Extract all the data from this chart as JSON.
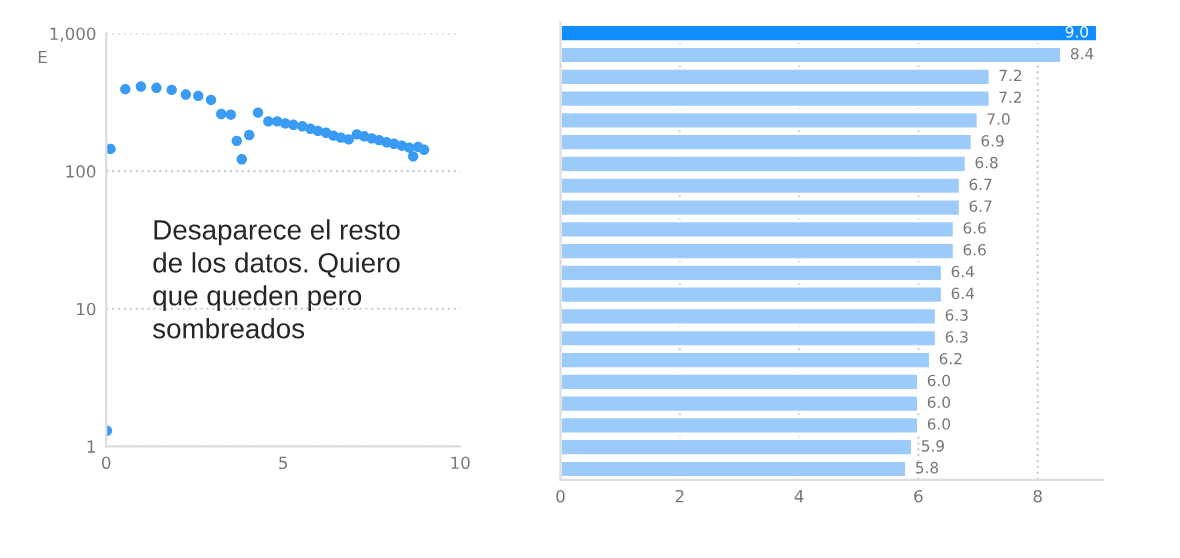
{
  "chart_data": [
    {
      "type": "scatter",
      "ylabel": "E",
      "log": "y",
      "grid": "y",
      "marker": "circle",
      "x": [
        0.02,
        0.12,
        0.54,
        0.98,
        1.42,
        1.85,
        2.25,
        2.6,
        2.96,
        3.25,
        3.52,
        3.69,
        3.83,
        4.04,
        4.29,
        4.58,
        4.83,
        5.06,
        5.29,
        5.54,
        5.77,
        5.98,
        6.21,
        6.42,
        6.63,
        6.85,
        7.08,
        7.29,
        7.5,
        7.71,
        7.92,
        8.13,
        8.35,
        8.56,
        8.67,
        8.81,
        8.98
      ],
      "series": [
        {
          "color": "#3a9bf4",
          "values": [
            1.3,
            145,
            394,
            412,
            403,
            389,
            360,
            352,
            329,
            260,
            257,
            166,
            122,
            183,
            266,
            230,
            230,
            222,
            217,
            212,
            203,
            196,
            190,
            181,
            175,
            170,
            185,
            179,
            173,
            168,
            162,
            158,
            153,
            148,
            128,
            150,
            143
          ]
        }
      ],
      "xlim": [
        0,
        10
      ],
      "xticks": [
        0,
        5,
        10
      ],
      "ylim": [
        1,
        1000
      ],
      "yticks": [
        1,
        10,
        100,
        {
          "value": 1000,
          "label": "1,000"
        }
      ],
      "annotations": [
        "Desaparece el resto de los datos. Quiero que queden pero sombreados"
      ]
    },
    {
      "type": "bar",
      "orientation": "horizontal",
      "grid": "x",
      "categories": [
        null,
        null,
        null,
        null,
        null,
        null,
        null,
        null,
        null,
        null,
        null,
        null,
        null,
        null,
        null,
        null,
        null,
        null,
        null,
        null,
        null
      ],
      "values": [
        9.0,
        8.4,
        7.2,
        7.2,
        7.0,
        6.9,
        6.8,
        6.7,
        6.7,
        6.6,
        6.6,
        6.4,
        6.4,
        6.3,
        6.3,
        6.2,
        6.0,
        6.0,
        6.0,
        5.9,
        5.8
      ],
      "colors": [
        "#118dff",
        "#9ccbfa",
        "#9ccbfa",
        "#9ccbfa",
        "#9ccbfa",
        "#9ccbfa",
        "#9ccbfa",
        "#9ccbfa",
        "#9ccbfa",
        "#9ccbfa",
        "#9ccbfa",
        "#9ccbfa",
        "#9ccbfa",
        "#9ccbfa",
        "#9ccbfa",
        "#9ccbfa",
        "#9ccbfa",
        "#9ccbfa",
        "#9ccbfa",
        "#9ccbfa",
        "#9ccbfa"
      ],
      "value_labels": [
        "9.0",
        "8.4",
        "7.2",
        "7.2",
        "7.0",
        "6.9",
        "6.8",
        "6.7",
        "6.7",
        "6.6",
        "6.6",
        "6.4",
        "6.4",
        "6.3",
        "6.3",
        "6.2",
        "6.0",
        "6.0",
        "6.0",
        "5.9",
        "5.8"
      ],
      "xlim": [
        0,
        9.1
      ],
      "xticks": [
        0,
        2,
        4,
        6,
        8
      ]
    }
  ]
}
